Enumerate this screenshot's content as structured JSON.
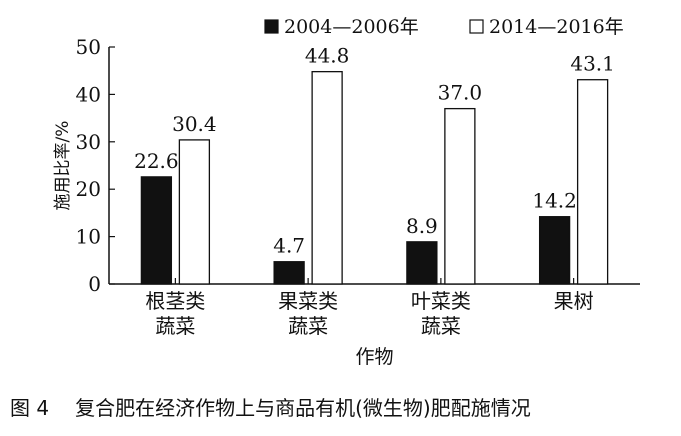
{
  "chart_data": {
    "type": "bar",
    "categories": [
      [
        "根茎类",
        "蔬菜"
      ],
      [
        "果菜类",
        "蔬菜"
      ],
      [
        "叶菜类",
        "蔬菜"
      ],
      [
        "果树"
      ]
    ],
    "series": [
      {
        "name": "2004—2006年",
        "values": [
          22.6,
          4.7,
          8.9,
          14.2
        ],
        "labels": [
          "22.6",
          "4.7",
          "8.9",
          "14.2"
        ],
        "fill": "#111111"
      },
      {
        "name": "2014—2016年",
        "values": [
          30.4,
          44.8,
          37.0,
          43.1
        ],
        "labels": [
          "30.4",
          "44.8",
          "37.0",
          "43.1"
        ],
        "fill": "#ffffff"
      }
    ],
    "xlabel": "作物",
    "ylabel": "施用比率/%",
    "ylim": [
      0,
      50
    ],
    "yticks": [
      "0",
      "10",
      "20",
      "30",
      "40",
      "50"
    ],
    "legend_position": "top-right",
    "grid": false
  },
  "caption": {
    "number": "图 4",
    "text": "复合肥在经济作物上与商品有机(微生物)肥配施情况"
  }
}
